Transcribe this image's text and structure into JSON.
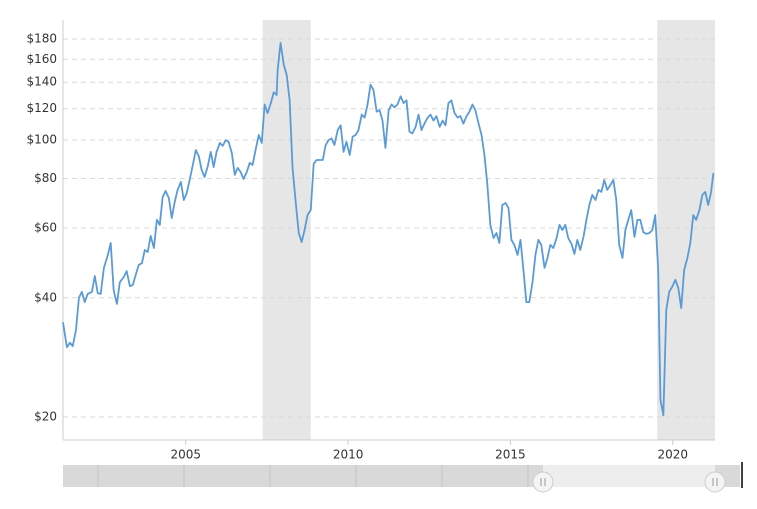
{
  "chart_data": {
    "type": "line",
    "log_y": true,
    "grid": true,
    "color": "#5b9bd5",
    "xlim": [
      2001.22,
      2021.3
    ],
    "xticks": [
      2005,
      2010,
      2015,
      2020
    ],
    "ylim": [
      17.5,
      201
    ],
    "yticks": [
      {
        "value": 20,
        "label": "$20"
      },
      {
        "value": 40,
        "label": "$40"
      },
      {
        "value": 60,
        "label": "$60"
      },
      {
        "value": 80,
        "label": "$80"
      },
      {
        "value": 100,
        "label": "$100"
      },
      {
        "value": 120,
        "label": "$120"
      },
      {
        "value": 140,
        "label": "$140"
      },
      {
        "value": 160,
        "label": "$160"
      },
      {
        "value": 180,
        "label": "$180"
      }
    ],
    "shaded_ranges": [
      [
        2007.37,
        2008.85
      ],
      [
        2019.52,
        2021.3
      ]
    ],
    "x": [
      2001.22,
      2001.34,
      2001.43,
      2001.52,
      2001.62,
      2001.71,
      2001.8,
      2001.89,
      2001.98,
      2002.11,
      2002.2,
      2002.29,
      2002.38,
      2002.48,
      2002.6,
      2002.69,
      2002.78,
      2002.88,
      2002.97,
      2003.09,
      2003.18,
      2003.28,
      2003.37,
      2003.46,
      2003.55,
      2003.65,
      2003.74,
      2003.83,
      2003.92,
      2004.02,
      2004.11,
      2004.2,
      2004.29,
      2004.38,
      2004.48,
      2004.57,
      2004.66,
      2004.75,
      2004.85,
      2004.94,
      2005.03,
      2005.12,
      2005.22,
      2005.31,
      2005.4,
      2005.49,
      2005.58,
      2005.68,
      2005.77,
      2005.86,
      2005.95,
      2006.05,
      2006.14,
      2006.23,
      2006.32,
      2006.42,
      2006.51,
      2006.6,
      2006.69,
      2006.78,
      2006.88,
      2006.97,
      2007.06,
      2007.15,
      2007.25,
      2007.34,
      2007.43,
      2007.52,
      2007.62,
      2007.71,
      2007.8,
      2007.83,
      2007.92,
      2008.02,
      2008.11,
      2008.2,
      2008.29,
      2008.38,
      2008.48,
      2008.57,
      2008.66,
      2008.75,
      2008.85,
      2008.94,
      2009.03,
      2009.12,
      2009.22,
      2009.31,
      2009.4,
      2009.49,
      2009.58,
      2009.68,
      2009.77,
      2009.86,
      2009.95,
      2010.05,
      2010.14,
      2010.23,
      2010.32,
      2010.42,
      2010.51,
      2010.6,
      2010.69,
      2010.78,
      2010.88,
      2010.97,
      2011.06,
      2011.15,
      2011.25,
      2011.34,
      2011.43,
      2011.52,
      2011.62,
      2011.71,
      2011.8,
      2011.89,
      2011.98,
      2012.08,
      2012.17,
      2012.26,
      2012.35,
      2012.45,
      2012.54,
      2012.63,
      2012.72,
      2012.82,
      2012.91,
      2013.0,
      2013.09,
      2013.18,
      2013.28,
      2013.37,
      2013.46,
      2013.55,
      2013.65,
      2013.74,
      2013.83,
      2013.92,
      2014.02,
      2014.11,
      2014.2,
      2014.29,
      2014.38,
      2014.48,
      2014.57,
      2014.66,
      2014.75,
      2014.85,
      2014.94,
      2015.03,
      2015.12,
      2015.22,
      2015.31,
      2015.4,
      2015.49,
      2015.58,
      2015.68,
      2015.77,
      2015.86,
      2015.95,
      2016.05,
      2016.14,
      2016.23,
      2016.32,
      2016.42,
      2016.51,
      2016.6,
      2016.69,
      2016.78,
      2016.88,
      2016.97,
      2017.06,
      2017.15,
      2017.25,
      2017.34,
      2017.43,
      2017.52,
      2017.62,
      2017.71,
      2017.8,
      2017.89,
      2017.98,
      2018.08,
      2018.17,
      2018.26,
      2018.35,
      2018.45,
      2018.54,
      2018.63,
      2018.72,
      2018.82,
      2018.91,
      2019.0,
      2019.09,
      2019.18,
      2019.28,
      2019.37,
      2019.46,
      2019.55,
      2019.62,
      2019.71,
      2019.8,
      2019.89,
      2019.98,
      2020.08,
      2020.17,
      2020.26,
      2020.35,
      2020.45,
      2020.54,
      2020.63,
      2020.72,
      2020.82,
      2020.91,
      2021.0,
      2021.09,
      2021.18,
      2021.25
    ],
    "values": [
      34.7,
      30.0,
      30.8,
      30.2,
      33.2,
      40.0,
      41.4,
      39.0,
      40.9,
      41.4,
      45.4,
      41.1,
      40.9,
      47.6,
      51.3,
      55.0,
      41.8,
      38.6,
      43.8,
      45.1,
      46.7,
      42.8,
      43.1,
      45.7,
      48.4,
      48.9,
      52.8,
      52.2,
      57.3,
      53.4,
      62.9,
      61.1,
      71.9,
      74.4,
      71.4,
      63.6,
      69.8,
      74.9,
      78.4,
      70.6,
      73.5,
      79.3,
      86.6,
      94.4,
      91.2,
      84.1,
      80.7,
      86.0,
      93.4,
      85.5,
      93.4,
      98.4,
      96.7,
      100,
      99.0,
      92.8,
      81.7,
      85.1,
      83.1,
      79.8,
      83.1,
      87.6,
      86.6,
      94.4,
      103,
      98.4,
      123,
      117,
      124,
      132,
      130,
      150,
      176,
      155,
      146,
      126,
      85.1,
      70.6,
      58.3,
      55.3,
      59.3,
      64.7,
      66.6,
      87.1,
      89.1,
      89.1,
      89.1,
      97.2,
      100,
      101,
      97.2,
      106,
      109,
      93.4,
      99.0,
      91.7,
      102,
      103,
      106,
      116,
      114,
      123,
      138,
      134,
      118,
      119,
      112,
      95.6,
      119,
      123,
      121,
      123,
      129,
      124,
      126,
      105,
      104,
      108,
      116,
      106,
      110,
      114,
      116,
      112,
      115,
      108,
      112,
      109,
      124,
      126,
      117,
      114,
      115,
      110,
      115,
      118,
      123,
      119,
      110,
      103,
      91.7,
      77.1,
      61.1,
      56.6,
      58.3,
      55.0,
      68.6,
      69.4,
      67.4,
      56.0,
      54.4,
      51.3,
      56.0,
      47.0,
      39.0,
      39.0,
      43.8,
      51.3,
      56.0,
      54.4,
      47.6,
      50.4,
      54.4,
      53.4,
      56.6,
      61.1,
      59.3,
      61.1,
      56.6,
      54.7,
      51.6,
      56.0,
      52.8,
      57.0,
      62.9,
      68.6,
      72.7,
      70.6,
      74.9,
      74.0,
      79.3,
      74.9,
      77.1,
      79.3,
      70.6,
      54.4,
      50.4,
      59.3,
      62.9,
      66.6,
      57.0,
      62.9,
      62.9,
      58.6,
      58.0,
      58.3,
      59.3,
      64.7,
      47.0,
      22.1,
      20.2,
      37.3,
      41.4,
      42.6,
      44.4,
      42.3,
      37.7,
      47.0,
      50.4,
      55.0,
      64.7,
      62.9,
      66.6,
      72.7,
      74.0,
      68.6,
      74.0,
      82.6
    ]
  }
}
